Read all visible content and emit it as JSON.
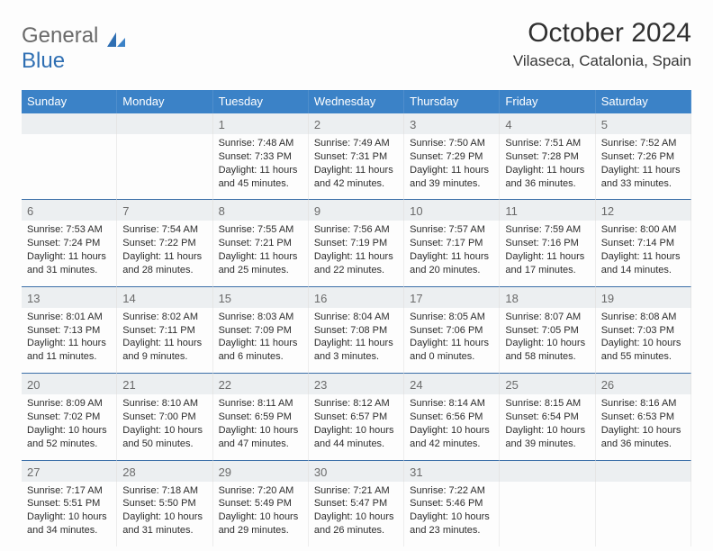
{
  "logo": {
    "general": "General",
    "blue": "Blue"
  },
  "title": "October 2024",
  "location": "Vilaseca, Catalonia, Spain",
  "colors": {
    "headerBg": "#3b82c7",
    "headerText": "#ffffff",
    "rowDivider": "#3b6fa8",
    "dayNumBg": "#eceff1",
    "bodyBg": "#fdfdfd"
  },
  "dayNames": [
    "Sunday",
    "Monday",
    "Tuesday",
    "Wednesday",
    "Thursday",
    "Friday",
    "Saturday"
  ],
  "weeks": [
    [
      {
        "n": "",
        "sr": "",
        "ss": "",
        "dl": ""
      },
      {
        "n": "",
        "sr": "",
        "ss": "",
        "dl": ""
      },
      {
        "n": "1",
        "sr": "Sunrise: 7:48 AM",
        "ss": "Sunset: 7:33 PM",
        "dl": "Daylight: 11 hours and 45 minutes."
      },
      {
        "n": "2",
        "sr": "Sunrise: 7:49 AM",
        "ss": "Sunset: 7:31 PM",
        "dl": "Daylight: 11 hours and 42 minutes."
      },
      {
        "n": "3",
        "sr": "Sunrise: 7:50 AM",
        "ss": "Sunset: 7:29 PM",
        "dl": "Daylight: 11 hours and 39 minutes."
      },
      {
        "n": "4",
        "sr": "Sunrise: 7:51 AM",
        "ss": "Sunset: 7:28 PM",
        "dl": "Daylight: 11 hours and 36 minutes."
      },
      {
        "n": "5",
        "sr": "Sunrise: 7:52 AM",
        "ss": "Sunset: 7:26 PM",
        "dl": "Daylight: 11 hours and 33 minutes."
      }
    ],
    [
      {
        "n": "6",
        "sr": "Sunrise: 7:53 AM",
        "ss": "Sunset: 7:24 PM",
        "dl": "Daylight: 11 hours and 31 minutes."
      },
      {
        "n": "7",
        "sr": "Sunrise: 7:54 AM",
        "ss": "Sunset: 7:22 PM",
        "dl": "Daylight: 11 hours and 28 minutes."
      },
      {
        "n": "8",
        "sr": "Sunrise: 7:55 AM",
        "ss": "Sunset: 7:21 PM",
        "dl": "Daylight: 11 hours and 25 minutes."
      },
      {
        "n": "9",
        "sr": "Sunrise: 7:56 AM",
        "ss": "Sunset: 7:19 PM",
        "dl": "Daylight: 11 hours and 22 minutes."
      },
      {
        "n": "10",
        "sr": "Sunrise: 7:57 AM",
        "ss": "Sunset: 7:17 PM",
        "dl": "Daylight: 11 hours and 20 minutes."
      },
      {
        "n": "11",
        "sr": "Sunrise: 7:59 AM",
        "ss": "Sunset: 7:16 PM",
        "dl": "Daylight: 11 hours and 17 minutes."
      },
      {
        "n": "12",
        "sr": "Sunrise: 8:00 AM",
        "ss": "Sunset: 7:14 PM",
        "dl": "Daylight: 11 hours and 14 minutes."
      }
    ],
    [
      {
        "n": "13",
        "sr": "Sunrise: 8:01 AM",
        "ss": "Sunset: 7:13 PM",
        "dl": "Daylight: 11 hours and 11 minutes."
      },
      {
        "n": "14",
        "sr": "Sunrise: 8:02 AM",
        "ss": "Sunset: 7:11 PM",
        "dl": "Daylight: 11 hours and 9 minutes."
      },
      {
        "n": "15",
        "sr": "Sunrise: 8:03 AM",
        "ss": "Sunset: 7:09 PM",
        "dl": "Daylight: 11 hours and 6 minutes."
      },
      {
        "n": "16",
        "sr": "Sunrise: 8:04 AM",
        "ss": "Sunset: 7:08 PM",
        "dl": "Daylight: 11 hours and 3 minutes."
      },
      {
        "n": "17",
        "sr": "Sunrise: 8:05 AM",
        "ss": "Sunset: 7:06 PM",
        "dl": "Daylight: 11 hours and 0 minutes."
      },
      {
        "n": "18",
        "sr": "Sunrise: 8:07 AM",
        "ss": "Sunset: 7:05 PM",
        "dl": "Daylight: 10 hours and 58 minutes."
      },
      {
        "n": "19",
        "sr": "Sunrise: 8:08 AM",
        "ss": "Sunset: 7:03 PM",
        "dl": "Daylight: 10 hours and 55 minutes."
      }
    ],
    [
      {
        "n": "20",
        "sr": "Sunrise: 8:09 AM",
        "ss": "Sunset: 7:02 PM",
        "dl": "Daylight: 10 hours and 52 minutes."
      },
      {
        "n": "21",
        "sr": "Sunrise: 8:10 AM",
        "ss": "Sunset: 7:00 PM",
        "dl": "Daylight: 10 hours and 50 minutes."
      },
      {
        "n": "22",
        "sr": "Sunrise: 8:11 AM",
        "ss": "Sunset: 6:59 PM",
        "dl": "Daylight: 10 hours and 47 minutes."
      },
      {
        "n": "23",
        "sr": "Sunrise: 8:12 AM",
        "ss": "Sunset: 6:57 PM",
        "dl": "Daylight: 10 hours and 44 minutes."
      },
      {
        "n": "24",
        "sr": "Sunrise: 8:14 AM",
        "ss": "Sunset: 6:56 PM",
        "dl": "Daylight: 10 hours and 42 minutes."
      },
      {
        "n": "25",
        "sr": "Sunrise: 8:15 AM",
        "ss": "Sunset: 6:54 PM",
        "dl": "Daylight: 10 hours and 39 minutes."
      },
      {
        "n": "26",
        "sr": "Sunrise: 8:16 AM",
        "ss": "Sunset: 6:53 PM",
        "dl": "Daylight: 10 hours and 36 minutes."
      }
    ],
    [
      {
        "n": "27",
        "sr": "Sunrise: 7:17 AM",
        "ss": "Sunset: 5:51 PM",
        "dl": "Daylight: 10 hours and 34 minutes."
      },
      {
        "n": "28",
        "sr": "Sunrise: 7:18 AM",
        "ss": "Sunset: 5:50 PM",
        "dl": "Daylight: 10 hours and 31 minutes."
      },
      {
        "n": "29",
        "sr": "Sunrise: 7:20 AM",
        "ss": "Sunset: 5:49 PM",
        "dl": "Daylight: 10 hours and 29 minutes."
      },
      {
        "n": "30",
        "sr": "Sunrise: 7:21 AM",
        "ss": "Sunset: 5:47 PM",
        "dl": "Daylight: 10 hours and 26 minutes."
      },
      {
        "n": "31",
        "sr": "Sunrise: 7:22 AM",
        "ss": "Sunset: 5:46 PM",
        "dl": "Daylight: 10 hours and 23 minutes."
      },
      {
        "n": "",
        "sr": "",
        "ss": "",
        "dl": ""
      },
      {
        "n": "",
        "sr": "",
        "ss": "",
        "dl": ""
      }
    ]
  ]
}
